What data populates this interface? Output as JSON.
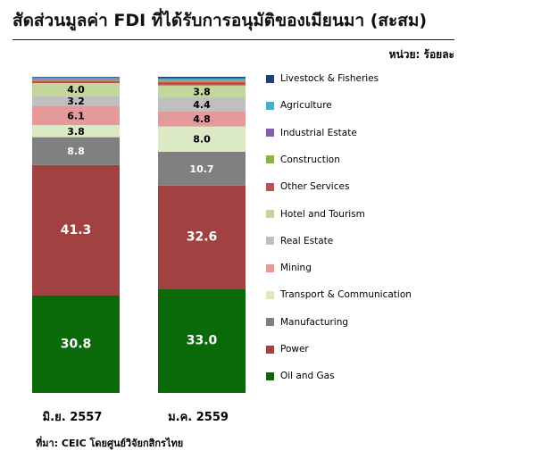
{
  "title": "สัดส่วนมูลค่า FDI ที่ได้รับการอนุมัติของเมียนมา (สะสม)",
  "unit": "หน่วย: ร้อยละ",
  "source": "ที่มา: CEIC โดยศูนย์วิจัยกสิกรไทย",
  "colors": {
    "Livestock & Fisheries": "#243f7a",
    "Agriculture": "#4bacc6",
    "Industrial Estate": "#7f62a1",
    "Construction": "#8db049",
    "Other Services": "#c0504d",
    "Hotel and Tourism": "#c3d69b",
    "Real Estate": "#bfbfbf",
    "Mining": "#e6999b",
    "Transport & Communication": "#dbe9c4",
    "Manufacturing": "#808080",
    "Power": "#a14142",
    "Oil and Gas": "#0a6a0a"
  },
  "chart_data": {
    "type": "bar",
    "stacked": true,
    "categories": [
      "มิ.ย. 2557",
      "ม.ค. 2559"
    ],
    "ylim": [
      0,
      100
    ],
    "legend_position": "right",
    "legend_order": [
      "Livestock & Fisheries",
      "Agriculture",
      "Industrial Estate",
      "Construction",
      "Other Services",
      "Hotel and Tourism",
      "Real Estate",
      "Mining",
      "Transport & Communication",
      "Manufacturing",
      "Power",
      "Oil and Gas"
    ],
    "series": [
      {
        "name": "Oil and Gas",
        "values": [
          30.8,
          33.0
        ],
        "labels": [
          "30.8",
          "33.0"
        ]
      },
      {
        "name": "Power",
        "values": [
          41.3,
          32.6
        ],
        "labels": [
          "41.3",
          "32.6"
        ]
      },
      {
        "name": "Manufacturing",
        "values": [
          8.8,
          10.7
        ],
        "labels": [
          "8.8",
          "10.7"
        ]
      },
      {
        "name": "Transport & Communication",
        "values": [
          3.8,
          8.0
        ],
        "labels": [
          "3.8",
          "8.0"
        ]
      },
      {
        "name": "Mining",
        "values": [
          6.1,
          4.8
        ],
        "labels": [
          "6.1",
          "4.8"
        ]
      },
      {
        "name": "Real Estate",
        "values": [
          3.2,
          4.4
        ],
        "labels": [
          "3.2",
          "4.4"
        ]
      },
      {
        "name": "Hotel and Tourism",
        "values": [
          4.0,
          3.8
        ],
        "labels": [
          "4.0",
          "3.8"
        ]
      },
      {
        "name": "Other Services",
        "values": [
          0.7,
          1.0
        ],
        "labels": [
          "",
          ""
        ]
      },
      {
        "name": "Construction",
        "values": [
          0.4,
          0.5
        ],
        "labels": [
          "",
          ""
        ]
      },
      {
        "name": "Industrial Estate",
        "values": [
          0.3,
          0.1
        ],
        "labels": [
          "",
          ""
        ]
      },
      {
        "name": "Agriculture",
        "values": [
          0.4,
          0.6
        ],
        "labels": [
          "",
          ""
        ]
      },
      {
        "name": "Livestock & Fisheries",
        "values": [
          0.2,
          0.5
        ],
        "labels": [
          "",
          ""
        ]
      }
    ]
  }
}
